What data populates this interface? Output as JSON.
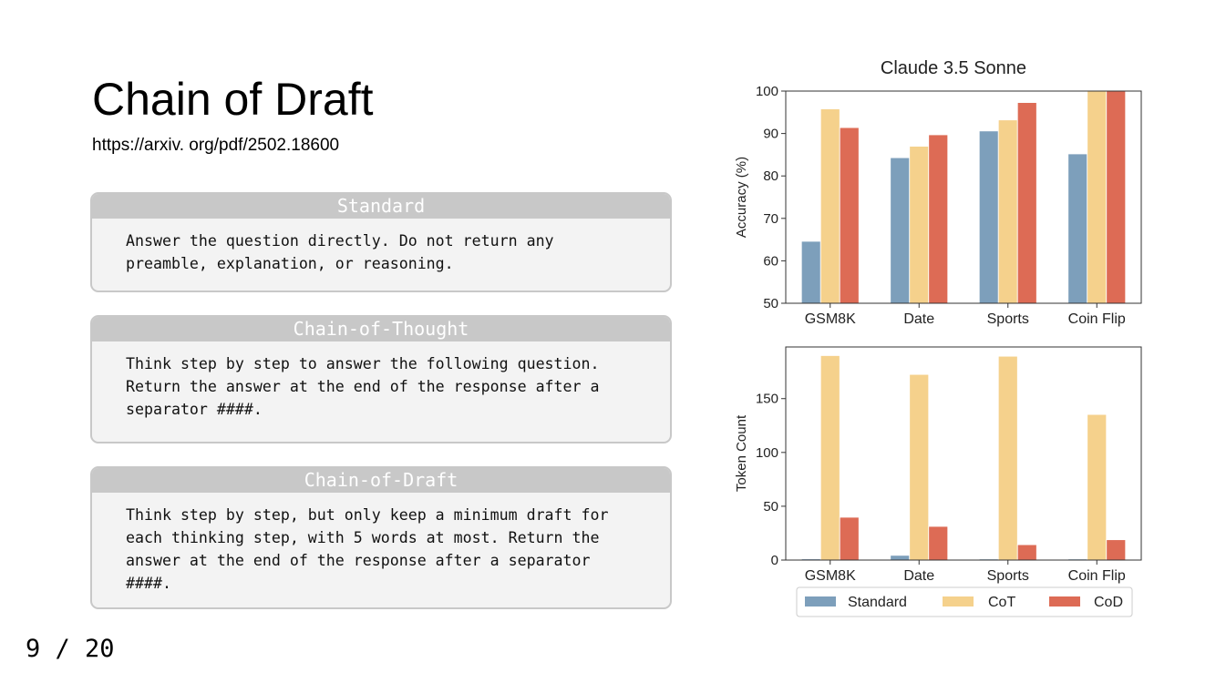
{
  "slide": {
    "title": "Chain of Draft",
    "link": "https://arxiv. org/pdf/2502.18600",
    "pager": "9 / 20"
  },
  "prompts": [
    {
      "header": "Standard",
      "body": "Answer the question directly.  Do not return any\npreamble, explanation, or reasoning."
    },
    {
      "header": "Chain-of-Thought",
      "body": "Think step by step to answer the following question.\nReturn the answer at the end of the response after a\nseparator ####."
    },
    {
      "header": "Chain-of-Draft",
      "body": "Think step by step, but only keep a minimum draft for\neach thinking step, with 5 words at most. Return the\nanswer at the end of the response after a separator\n####."
    }
  ],
  "colors": {
    "standard": "#7d9fbb",
    "cot": "#f5d18c",
    "cod": "#dd6b55"
  },
  "chart_data": [
    {
      "type": "bar",
      "title": "Claude 3.5 Sonne",
      "ylabel": "Accuracy (%)",
      "xlabel": "",
      "categories": [
        "GSM8K",
        "Date",
        "Sports",
        "Coin Flip"
      ],
      "series": [
        {
          "name": "Standard",
          "values": [
            64.6,
            84.3,
            90.6,
            85.2
          ]
        },
        {
          "name": "CoT",
          "values": [
            95.8,
            87.0,
            93.2,
            100
          ]
        },
        {
          "name": "CoD",
          "values": [
            91.4,
            89.7,
            97.3,
            100
          ]
        }
      ],
      "ylim": [
        50,
        100
      ],
      "yticks": [
        "50",
        "60",
        "70",
        "80",
        "90",
        "100"
      ],
      "grid": false
    },
    {
      "type": "bar",
      "title": "",
      "ylabel": "Token Count",
      "xlabel": "",
      "categories": [
        "GSM8K",
        "Date",
        "Sports",
        "Coin Flip"
      ],
      "series": [
        {
          "name": "Standard",
          "values": [
            1.1,
            4.4,
            1.0,
            1.0
          ]
        },
        {
          "name": "CoT",
          "values": [
            190.0,
            172.5,
            189.4,
            135.3
          ]
        },
        {
          "name": "CoD",
          "values": [
            39.8,
            31.3,
            14.3,
            18.9
          ]
        }
      ],
      "ylim": [
        0,
        198
      ],
      "yticks": [
        "0",
        "50",
        "100",
        "150"
      ],
      "grid": false,
      "legend": {
        "position": "bottom",
        "entries": [
          "Standard",
          "CoT",
          "CoD"
        ]
      }
    }
  ]
}
